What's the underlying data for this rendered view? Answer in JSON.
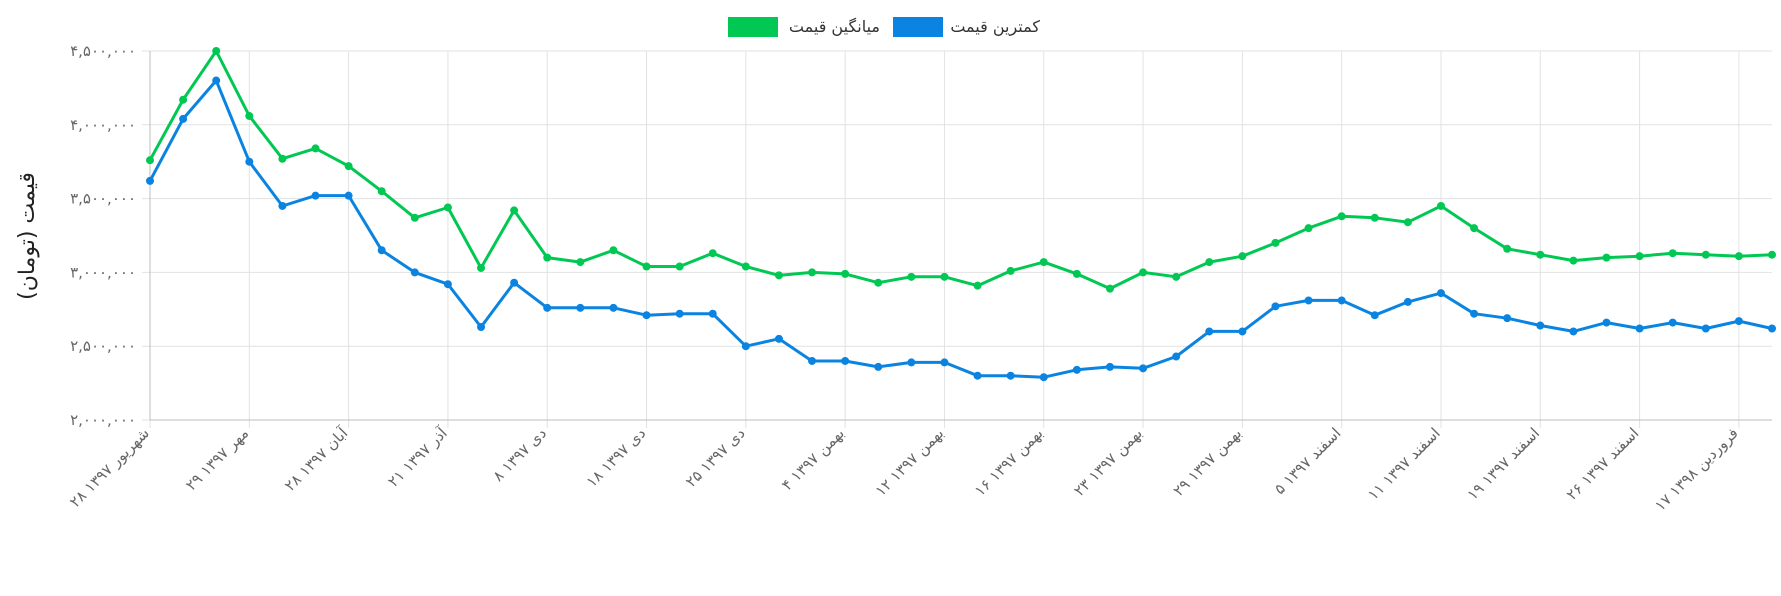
{
  "chart_data": {
    "type": "line",
    "ylabel": "قیمت (تومان)",
    "ylim": [
      2000000,
      4500000
    ],
    "yticks": [
      {
        "value": 2000000,
        "label": "۲,۰۰۰,۰۰۰"
      },
      {
        "value": 2500000,
        "label": "۲,۵۰۰,۰۰۰"
      },
      {
        "value": 3000000,
        "label": "۳,۰۰۰,۰۰۰"
      },
      {
        "value": 3500000,
        "label": "۳,۵۰۰,۰۰۰"
      },
      {
        "value": 4000000,
        "label": "۴,۰۰۰,۰۰۰"
      },
      {
        "value": 4500000,
        "label": "۴,۵۰۰,۰۰۰"
      }
    ],
    "xticks": [
      {
        "index": 0,
        "label": "۲۸ شهریور ۱۳۹۷"
      },
      {
        "index": 3,
        "label": "۲۹ مهر ۱۳۹۷"
      },
      {
        "index": 6,
        "label": "۲۸ آبان ۱۳۹۷"
      },
      {
        "index": 9,
        "label": "۲۱ آذر ۱۳۹۷"
      },
      {
        "index": 12,
        "label": "۸ دی ۱۳۹۷"
      },
      {
        "index": 15,
        "label": "۱۸ دی ۱۳۹۷"
      },
      {
        "index": 18,
        "label": "۲۵ دی ۱۳۹۷"
      },
      {
        "index": 21,
        "label": "۴ بهمن ۱۳۹۷"
      },
      {
        "index": 24,
        "label": "۱۲ بهمن ۱۳۹۷"
      },
      {
        "index": 27,
        "label": "۱۶ بهمن ۱۳۹۷"
      },
      {
        "index": 30,
        "label": "۲۳ بهمن ۱۳۹۷"
      },
      {
        "index": 33,
        "label": "۲۹ بهمن ۱۳۹۷"
      },
      {
        "index": 36,
        "label": "۵ اسفند ۱۳۹۷"
      },
      {
        "index": 39,
        "label": "۱۱ اسفند ۱۳۹۷"
      },
      {
        "index": 42,
        "label": "۱۹ اسفند ۱۳۹۷"
      },
      {
        "index": 45,
        "label": "۲۶ اسفند ۱۳۹۷"
      },
      {
        "index": 48,
        "label": "۱۷ فروردین ۱۳۹۸"
      }
    ],
    "grid": true,
    "legend_position": "top-center",
    "series": [
      {
        "name": "میانگین قیمت",
        "color": "#00c853",
        "values": [
          3760000,
          4170000,
          4500000,
          4060000,
          3770000,
          3840000,
          3720000,
          3550000,
          3370000,
          3440000,
          3030000,
          3420000,
          3100000,
          3070000,
          3150000,
          3040000,
          3040000,
          3130000,
          3040000,
          2980000,
          3000000,
          2990000,
          2930000,
          2970000,
          2970000,
          2910000,
          3010000,
          3070000,
          2990000,
          2890000,
          3000000,
          2970000,
          3070000,
          3110000,
          3200000,
          3300000,
          3380000,
          3370000,
          3340000,
          3450000,
          3300000,
          3160000,
          3120000,
          3080000,
          3100000,
          3110000,
          3130000,
          3120000,
          3110000,
          3120000
        ]
      },
      {
        "name": "کمترین قیمت",
        "color": "#0a84e0",
        "values": [
          3620000,
          4040000,
          4300000,
          3750000,
          3450000,
          3520000,
          3520000,
          3150000,
          3000000,
          2920000,
          2630000,
          2930000,
          2760000,
          2760000,
          2760000,
          2710000,
          2720000,
          2720000,
          2500000,
          2550000,
          2400000,
          2400000,
          2360000,
          2390000,
          2390000,
          2300000,
          2300000,
          2290000,
          2340000,
          2360000,
          2350000,
          2430000,
          2600000,
          2600000,
          2770000,
          2810000,
          2810000,
          2710000,
          2800000,
          2860000,
          2720000,
          2690000,
          2640000,
          2600000,
          2660000,
          2620000,
          2660000,
          2620000,
          2670000,
          2620000
        ]
      }
    ]
  }
}
